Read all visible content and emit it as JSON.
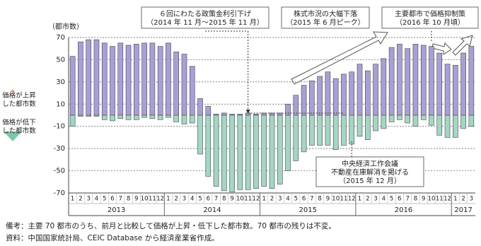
{
  "chart_data": {
    "type": "bar",
    "y_label": "（都市数）",
    "categories": [
      "1",
      "2",
      "3",
      "4",
      "5",
      "6",
      "7",
      "8",
      "9",
      "10",
      "11",
      "12",
      "1",
      "2",
      "3",
      "4",
      "5",
      "6",
      "7",
      "8",
      "9",
      "10",
      "11",
      "12",
      "1",
      "2",
      "3",
      "4",
      "5",
      "6",
      "7",
      "8",
      "9",
      "10",
      "11",
      "12",
      "1",
      "2",
      "3",
      "4",
      "5",
      "6",
      "7",
      "8",
      "9",
      "10",
      "11",
      "12",
      "1",
      "2",
      "3"
    ],
    "years": [
      "2013",
      "2014",
      "2015",
      "2016",
      "2017"
    ],
    "series": [
      {
        "name": "価格が上昇した都市数",
        "color": "#a99fd6",
        "values": [
          53,
          66,
          68,
          68,
          65,
          62,
          65,
          63,
          64,
          65,
          65,
          62,
          65,
          57,
          55,
          44,
          15,
          8,
          1,
          2,
          1,
          1,
          2,
          1,
          2,
          2,
          2,
          10,
          18,
          27,
          31,
          35,
          39,
          33,
          37,
          39,
          46,
          40,
          46,
          51,
          61,
          64,
          60,
          64,
          63,
          62,
          56,
          46,
          45,
          56,
          62
        ]
      },
      {
        "name": "価格が低下した都市数",
        "color": "#a3d6c4",
        "values": [
          -10,
          -1,
          -1,
          -1,
          -4,
          -5,
          -3,
          -4,
          -4,
          -2,
          -3,
          -4,
          -2,
          -6,
          -8,
          -7,
          -35,
          -55,
          -64,
          -68,
          -69,
          -67,
          -67,
          -66,
          -64,
          -66,
          -62,
          -50,
          -41,
          -33,
          -27,
          -27,
          -27,
          -31,
          -27,
          -26,
          -19,
          -22,
          -14,
          -12,
          -6,
          -4,
          -7,
          -10,
          -4,
          -9,
          -18,
          -20,
          -20,
          -12,
          -10
        ]
      }
    ],
    "ylim": [
      -70,
      70
    ],
    "yticks": [
      -70,
      -50,
      -30,
      -10,
      10,
      30,
      50,
      70
    ],
    "grid": true,
    "annotations": [
      {
        "lines": [
          "６回にわたる政策金利引下げ",
          "（2014 年 11 月～2015 年 11 月）"
        ]
      },
      {
        "lines": [
          "株式市況の大幅下落",
          "（2015 年 6 月ピーク）"
        ]
      },
      {
        "lines": [
          "主要都市で価格抑制策",
          "（2016 年 10 月頃）"
        ]
      },
      {
        "lines": [
          "中央経済工作会議",
          "不動産在庫解消を掲げる",
          "（2015 年 12 月）"
        ]
      }
    ]
  },
  "notes": [
    "備考：主要 70 都市のうち、前月と比較して価格が上昇・低下した都市数。70 都市の残りは不変。",
    "資料：中国国家統計局、CEIC Database から経済産業省作成。"
  ]
}
